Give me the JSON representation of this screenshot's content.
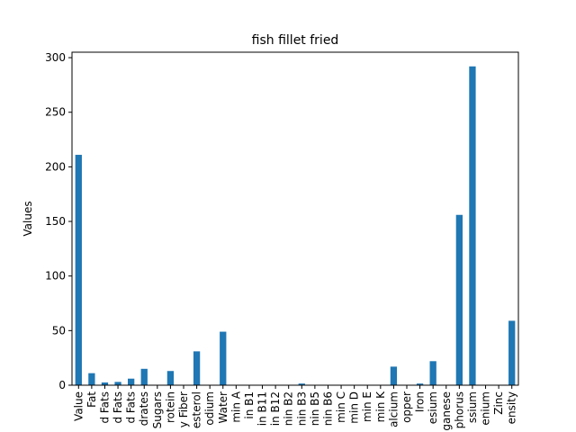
{
  "chart_data": {
    "type": "bar",
    "title": "fish fillet fried",
    "xlabel": "",
    "ylabel": "Values",
    "ylim": [
      0,
      305
    ],
    "yticks": [
      0,
      50,
      100,
      150,
      200,
      250,
      300
    ],
    "grid": false,
    "legend": "none",
    "bar_color": "#1f77b4",
    "categories": [
      "Value",
      "Fat",
      "d Fats",
      "d Fats",
      "d Fats",
      "drates",
      "Sugars",
      "rotein",
      "y Fiber",
      "esterol",
      "odium",
      "Water",
      "min A",
      "in B1",
      "in B11",
      "in B12",
      "nin B2",
      "nin B3",
      "nin B5",
      "nin B6",
      "min C",
      "min D",
      "min E",
      "min K",
      "alcium",
      "opper",
      "Iron",
      "esium",
      "ganese",
      "phorus",
      "ssium",
      "enium",
      "Zinc",
      "ensity"
    ],
    "values": [
      211,
      11,
      2.5,
      3,
      6,
      15,
      0,
      13,
      0,
      31,
      0,
      49,
      0,
      0,
      0,
      0,
      0,
      1.5,
      0,
      0,
      0,
      0,
      0,
      0,
      17,
      0,
      1.5,
      22,
      0,
      156,
      292,
      0,
      0,
      59
    ]
  }
}
